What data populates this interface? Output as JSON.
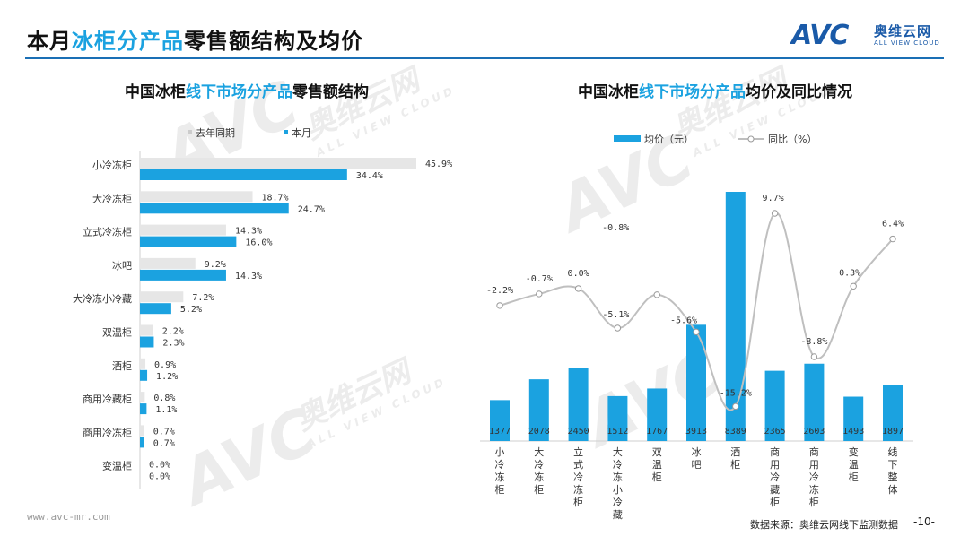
{
  "header": {
    "title_pre": "本月",
    "title_hl": "冰柜分产品",
    "title_post": "零售额结构及均价",
    "logo_mark": "AVC",
    "logo_cn": "奥维云网",
    "logo_en": "ALL VIEW CLOUD"
  },
  "watermark": {
    "mark": "AVC",
    "cn": "奥维云网",
    "en": "ALL VIEW CLOUD"
  },
  "footer": {
    "url": "www.avc-mr.com",
    "source": "数据来源：奥维云网线下监测数据",
    "page": "-10-"
  },
  "colors": {
    "accent": "#1ba2e0",
    "prior": "#e6e6e6",
    "line": "#bfbfbf",
    "rule": "#1a6fb5"
  },
  "chart_data": [
    {
      "type": "bar",
      "orientation": "horizontal",
      "title_parts": [
        "中国冰柜",
        "线下市场分产品",
        "零售额结构"
      ],
      "categories": [
        "小冷冻柜",
        "大冷冻柜",
        "立式冷冻柜",
        "冰吧",
        "大冷冻小冷藏",
        "双温柜",
        "酒柜",
        "商用冷藏柜",
        "商用冷冻柜",
        "变温柜"
      ],
      "series": [
        {
          "name": "去年同期",
          "values": [
            45.9,
            18.7,
            14.3,
            9.2,
            7.2,
            2.2,
            0.9,
            0.8,
            0.7,
            0.0
          ],
          "labels": [
            "45.9%",
            "18.7%",
            "14.3%",
            "9.2%",
            "7.2%",
            "2.2%",
            "0.9%",
            "0.8%",
            "0.7%",
            "0.0%"
          ]
        },
        {
          "name": "本月",
          "values": [
            34.4,
            24.7,
            16.0,
            14.3,
            5.2,
            2.3,
            1.2,
            1.1,
            0.7,
            0.0
          ],
          "labels": [
            "34.4%",
            "24.7%",
            "16.0%",
            "14.3%",
            "5.2%",
            "2.3%",
            "1.2%",
            "1.1%",
            "0.7%",
            "0.0%"
          ]
        }
      ],
      "legend": "top",
      "xlim": [
        0,
        50
      ]
    },
    {
      "type": "bar+line",
      "title_parts": [
        "中国冰柜",
        "线下市场分产品",
        "均价及同比情况"
      ],
      "categories": [
        "小冷冻柜",
        "大冷冻柜",
        "立式冷冻柜",
        "大冷冻小冷藏",
        "双温柜",
        "冰吧",
        "酒柜",
        "商用冷藏柜",
        "商用冷冻柜",
        "变温柜",
        "线下整体"
      ],
      "bar_series": {
        "name": "均价（元）",
        "values": [
          1377,
          2078,
          2450,
          1512,
          1767,
          3913,
          8389,
          2365,
          2603,
          1493,
          1897
        ],
        "labels": [
          "1377",
          "2078",
          "2450",
          "1512",
          "1767",
          "3913",
          "8389",
          "2365",
          "2603",
          "1493",
          "1897"
        ]
      },
      "line_series": {
        "name": "同比（%）",
        "values": [
          -2.2,
          -0.7,
          0.0,
          -5.1,
          -0.8,
          -5.6,
          -15.2,
          9.7,
          -8.8,
          0.3,
          6.4
        ],
        "labels": [
          "-2.2%",
          "-0.7%",
          "0.0%",
          "-5.1%",
          "-0.8%",
          "-5.6%",
          "-15.2%",
          "9.7%",
          "-8.8%",
          "0.3%",
          "6.4%"
        ]
      },
      "legend": "top",
      "ylim_bar": [
        0,
        8400
      ],
      "ylim_line": [
        -17,
        11
      ]
    }
  ]
}
